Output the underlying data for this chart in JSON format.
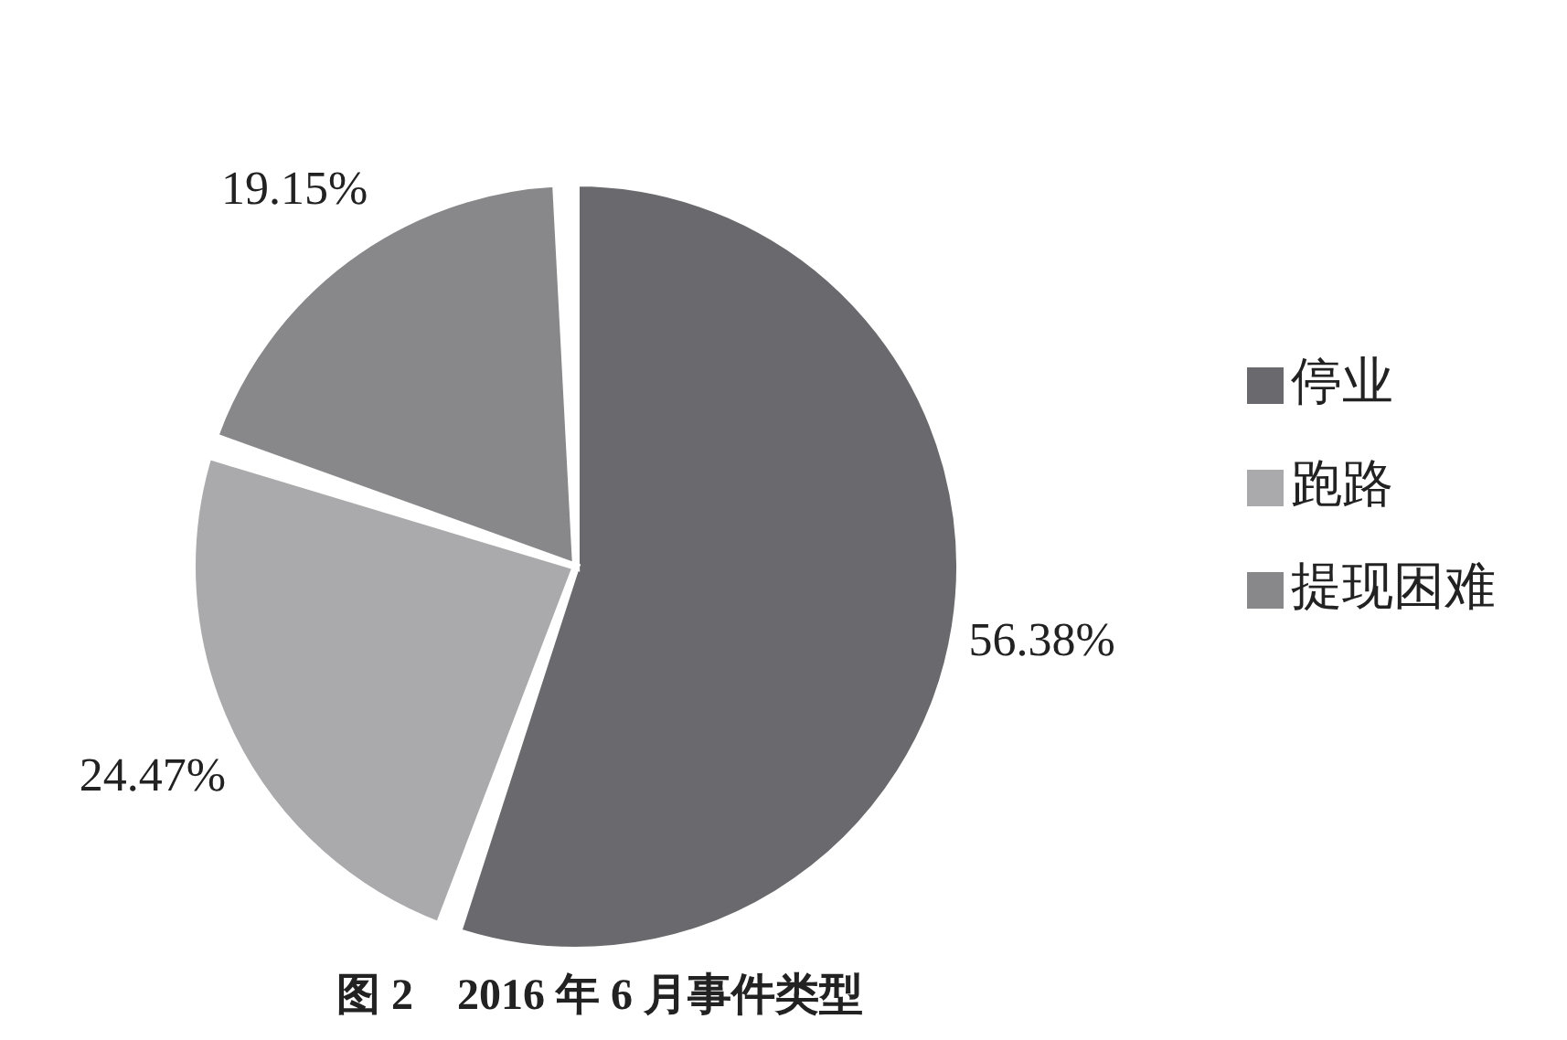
{
  "chart_data": {
    "type": "pie",
    "title": "图 2　2016 年 6 月事件类型",
    "categories": [
      "停业",
      "跑路",
      "提现困难"
    ],
    "values": [
      56.38,
      24.47,
      19.15
    ],
    "colors": [
      "#6a6a6e",
      "#aaaaac",
      "#88888b"
    ],
    "value_labels": [
      "56.38%",
      "24.47%",
      "19.15%"
    ],
    "legend": "right"
  }
}
